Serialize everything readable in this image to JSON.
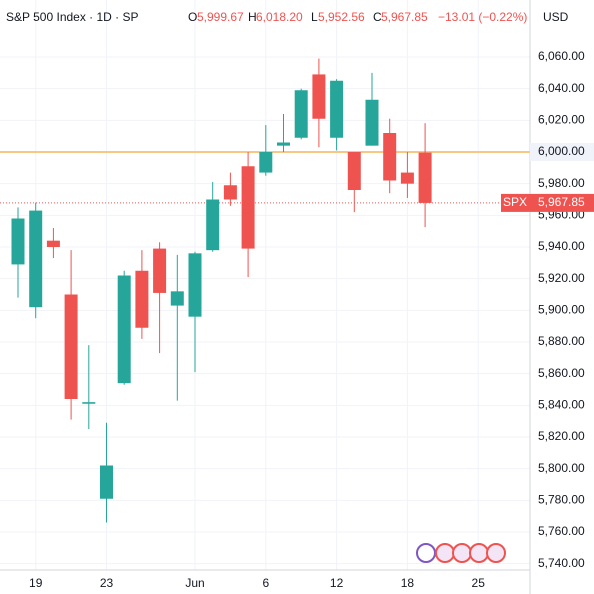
{
  "chart_data": {
    "type": "candlestick",
    "header": {
      "title": "S&P 500 Index · 1D · SP",
      "o": "O",
      "open": "5,999.67",
      "h": "H",
      "high": "6,018.20",
      "l": "L",
      "low": "5,952.56",
      "c": "C",
      "close": "5,967.85",
      "change": "−13.01 (−0.22%)"
    },
    "currency": "USD",
    "categories": [
      null,
      "19",
      null,
      null,
      null,
      "23",
      null,
      null,
      null,
      null,
      "Jun",
      null,
      null,
      null,
      "6",
      null,
      null,
      null,
      "12",
      null,
      null,
      null,
      "18",
      null,
      null,
      null,
      "25"
    ],
    "open": [
      5929,
      5902,
      5944,
      5910,
      5841,
      5781,
      5854,
      5925,
      5939,
      5903,
      5896,
      5938,
      5979,
      5991,
      5987,
      6004,
      6009,
      6049,
      6009,
      6000,
      6004,
      6012,
      5987,
      5999.67,
      null,
      null,
      null
    ],
    "high": [
      5965,
      5968,
      5952,
      5938,
      5878,
      5829,
      5925,
      5938,
      5943,
      5935,
      5937,
      5981,
      5987,
      6000,
      6017,
      6024,
      6040,
      6059,
      6046,
      6000,
      6050,
      6021,
      6000,
      6018.2,
      null,
      null,
      null
    ],
    "low": [
      5908,
      5895,
      5933,
      5831,
      5825,
      5766,
      5853,
      5882,
      5873,
      5843,
      5861,
      5937,
      5966,
      5921,
      5985,
      6000,
      6008,
      6003,
      6001,
      5962,
      6004,
      5974,
      5971,
      5952.56,
      null,
      null,
      null
    ],
    "close": [
      5958,
      5963,
      5940,
      5844,
      5842,
      5802,
      5922,
      5889,
      5911,
      5912,
      5936,
      5970,
      5970,
      5939,
      6000,
      6006,
      6039,
      6021,
      6045,
      5976,
      6033,
      5982,
      5980,
      5967.85,
      null,
      null,
      null
    ],
    "up_color": "#26a69a",
    "down_color": "#ef5350",
    "ylim": [
      5736,
      6096
    ],
    "yticks": [
      {
        "value": 5740,
        "label": "5,740.00"
      },
      {
        "value": 5760,
        "label": "5,760.00"
      },
      {
        "value": 5780,
        "label": "5,780.00"
      },
      {
        "value": 5800,
        "label": "5,800.00"
      },
      {
        "value": 5820,
        "label": "5,820.00"
      },
      {
        "value": 5840,
        "label": "5,840.00"
      },
      {
        "value": 5860,
        "label": "5,860.00"
      },
      {
        "value": 5880,
        "label": "5,880.00"
      },
      {
        "value": 5900,
        "label": "5,900.00"
      },
      {
        "value": 5920,
        "label": "5,920.00"
      },
      {
        "value": 5940,
        "label": "5,940.00"
      },
      {
        "value": 5960,
        "label": "5,960.00"
      },
      {
        "value": 5980,
        "label": "5,980.00"
      },
      {
        "value": 6000,
        "label": "6,000.00"
      },
      {
        "value": 6020,
        "label": "6,020.00"
      },
      {
        "value": 6040,
        "label": "6,040.00"
      },
      {
        "value": 6060,
        "label": "6,060.00"
      }
    ],
    "grid": true,
    "hline": {
      "value": 6000,
      "label": "6,000.00",
      "color": "#f9c784"
    },
    "price_line": {
      "name": "SPX",
      "value": 5967.85,
      "label": "5,967.85",
      "color": "#ef5350"
    }
  }
}
